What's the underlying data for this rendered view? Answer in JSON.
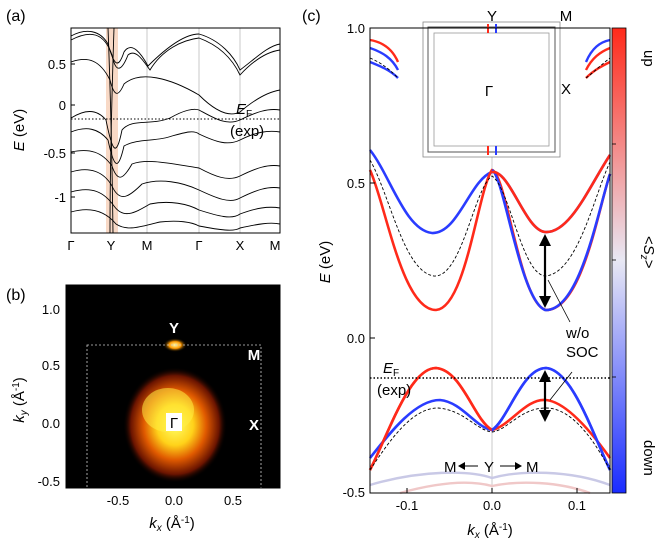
{
  "figure": {
    "panel_a": {
      "label": "(a)",
      "y_ticks": [
        "0.5",
        "0",
        "-0.5",
        "-1"
      ],
      "x_ticks": [
        "Γ",
        "Y",
        "M",
        "Γ",
        "X",
        "M"
      ],
      "ylabel_main": "E",
      "ylabel_unit": " (eV)",
      "ef_main": "E",
      "ef_sub": "F",
      "ef_note": "(exp)"
    },
    "panel_b": {
      "label": "(b)",
      "y_ticks": [
        "1.0",
        "0.5",
        "0.0",
        "-0.5"
      ],
      "x_ticks": [
        "-0.5",
        "0.0",
        "0.5"
      ],
      "ylabel_k": "k",
      "ylabel_sub": "y",
      "ylabel_unit": " (Å",
      "ylabel_exp": "-1",
      "ylabel_close": ")",
      "xlabel_k": "k",
      "xlabel_sub": "x",
      "xlabel_unit": " (Å",
      "xlabel_exp": "-1",
      "xlabel_close": ")",
      "points": {
        "y": "Y",
        "m": "M",
        "x": "X",
        "gamma": "Γ"
      }
    },
    "panel_c": {
      "label": "(c)",
      "y_ticks": [
        "1.0",
        "0.5",
        "0.0",
        "-0.5"
      ],
      "x_ticks": [
        "-0.1",
        "0.0",
        "0.1"
      ],
      "ylabel_main": "E",
      "ylabel_unit": " (eV)",
      "xlabel_k": "k",
      "xlabel_sub": "x",
      "xlabel_unit": " (Å",
      "xlabel_exp": "-1",
      "xlabel_close": ")",
      "ef_main": "E",
      "ef_sub": "F",
      "ef_note": "(exp)",
      "wo_label": "w/o",
      "soc_label": "SOC",
      "path_m1": "M",
      "path_y": "Y",
      "path_m2": "M",
      "inset": {
        "y": "Y",
        "m": "M",
        "x": "X",
        "gamma": "Γ"
      }
    },
    "colorbar": {
      "label_up": "up",
      "label_down": "down",
      "title_open": "<",
      "title_s": "S",
      "title_sub": "z",
      "title_close": ">",
      "up_color": "#ff2a1a",
      "mid_color": "#e8e8f4",
      "down_color": "#1a2cff"
    }
  }
}
